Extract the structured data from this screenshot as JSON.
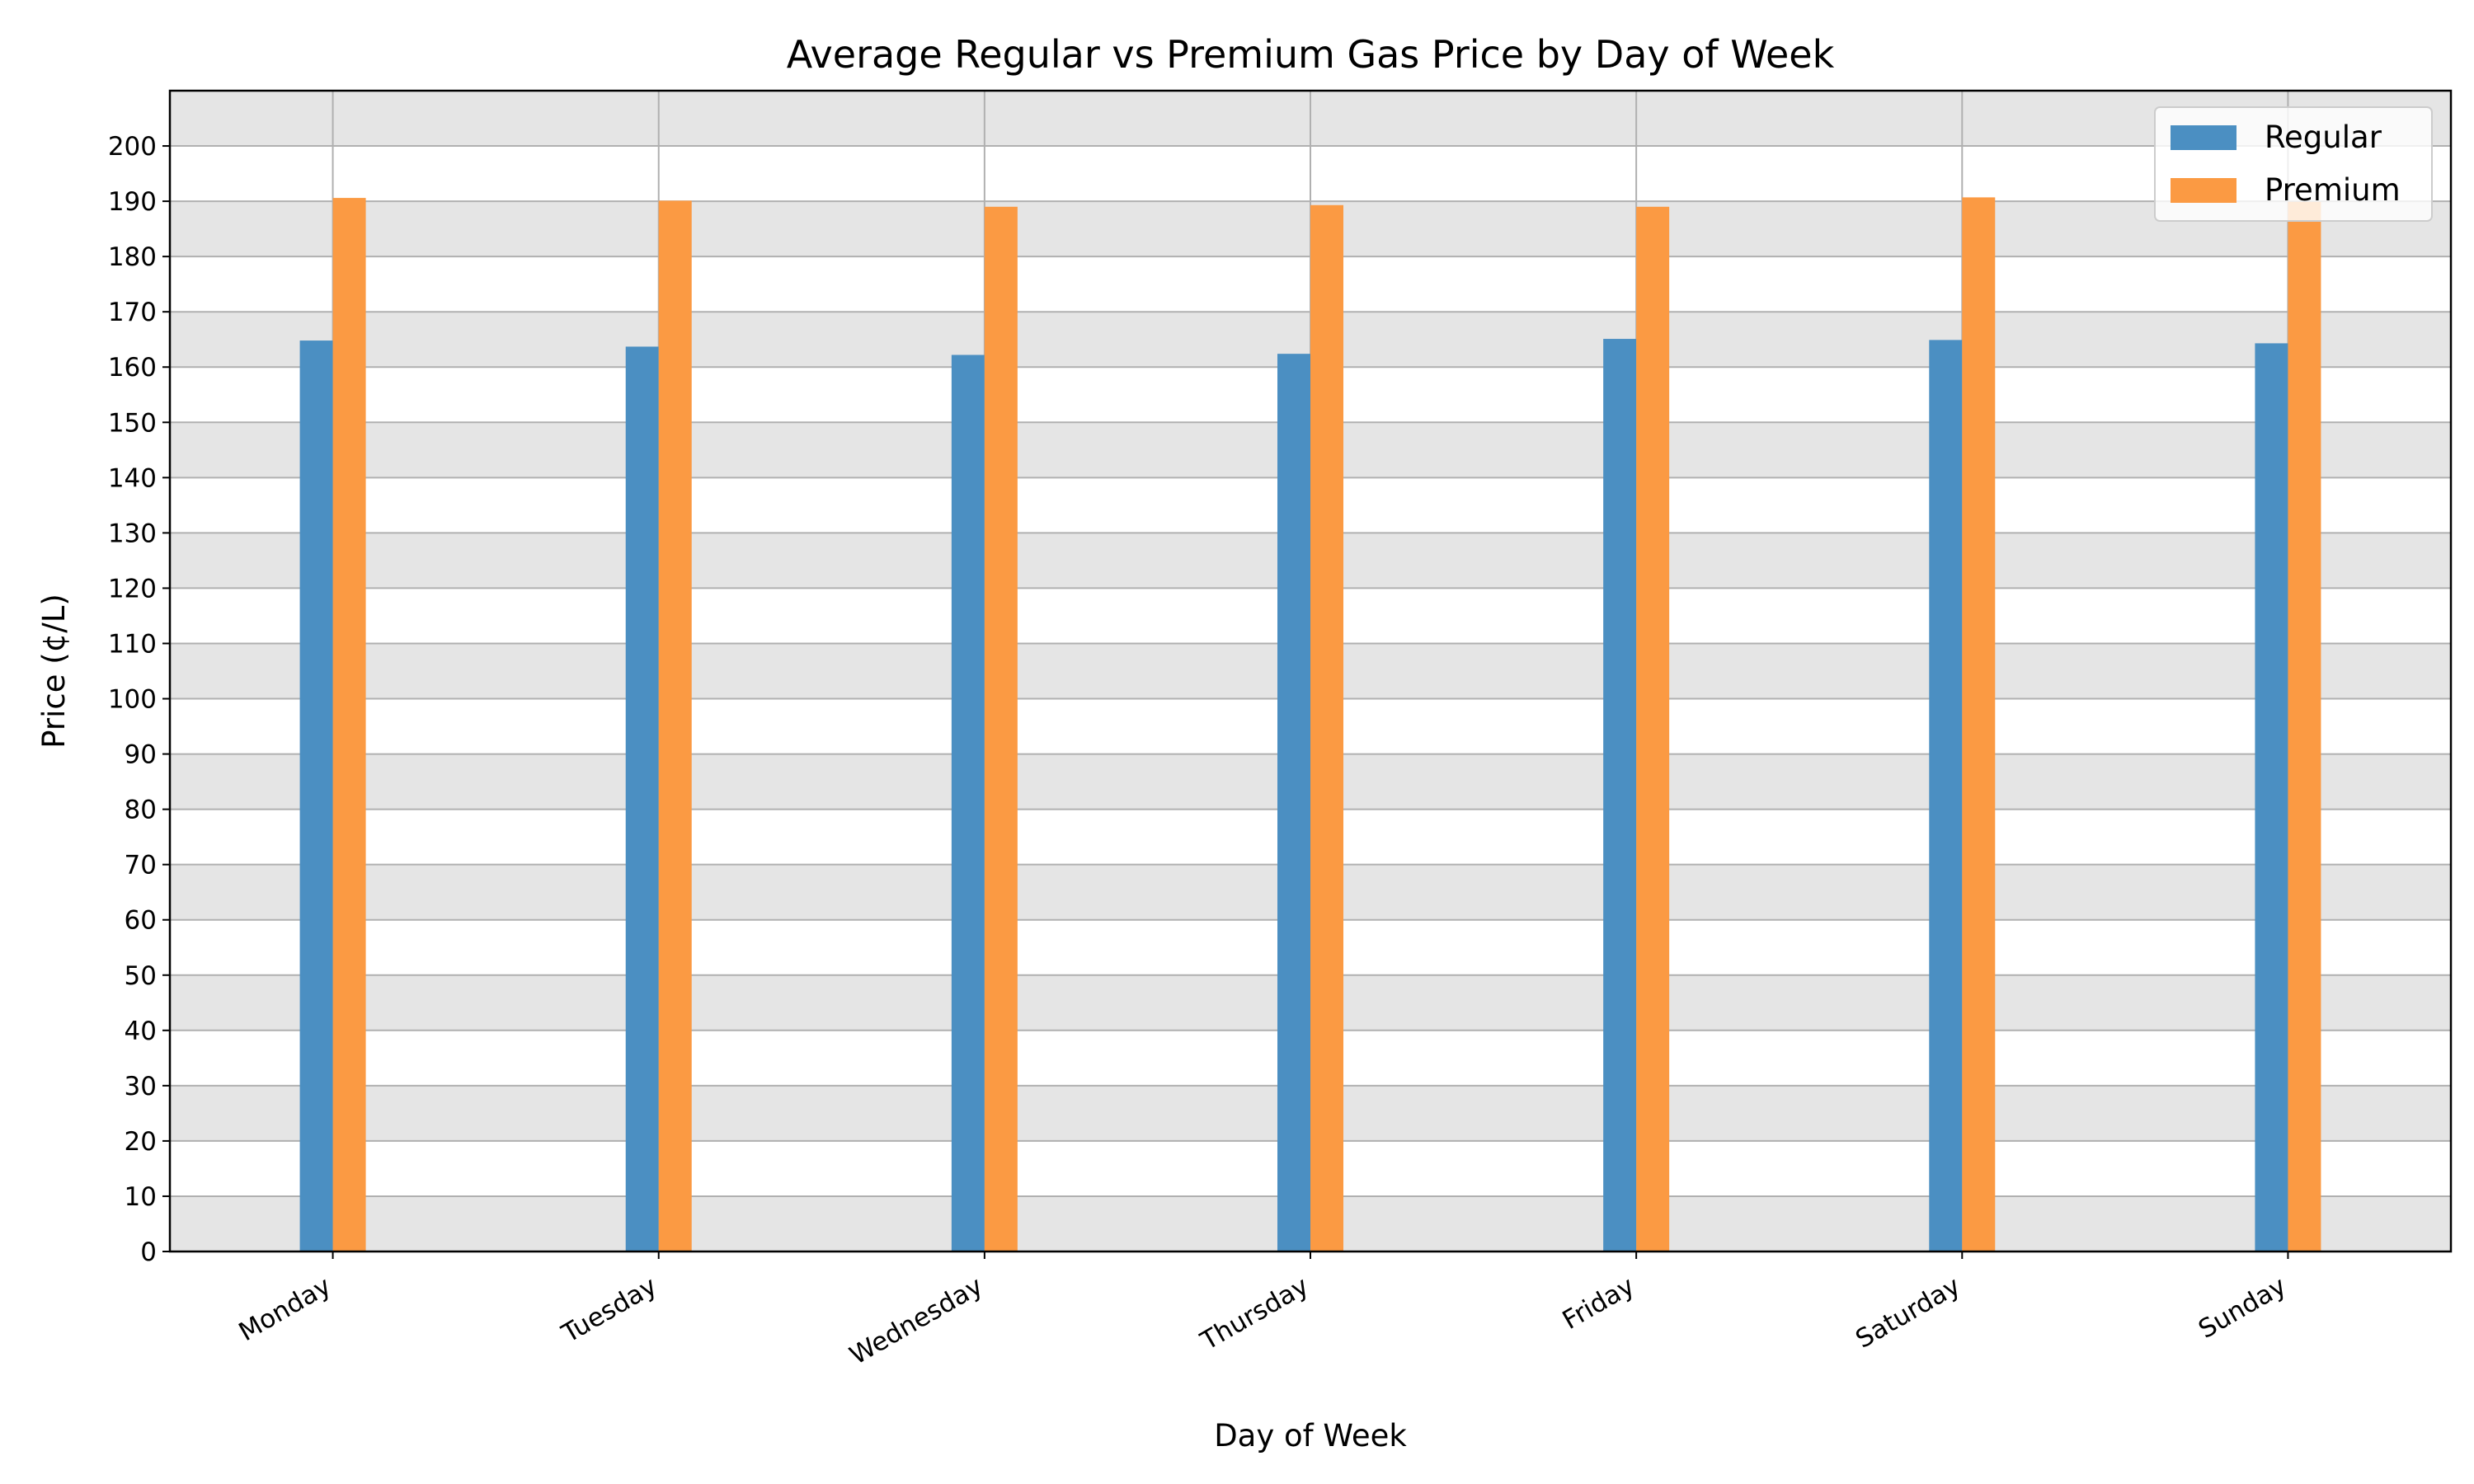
{
  "chart_data": {
    "type": "bar",
    "title": "Average Regular vs Premium Gas Price by Day of Week",
    "xlabel": "Day of Week",
    "ylabel": "Price (¢/L)",
    "categories": [
      "Monday",
      "Tuesday",
      "Wednesday",
      "Thursday",
      "Friday",
      "Saturday",
      "Sunday"
    ],
    "series": [
      {
        "name": "Regular",
        "color": "#4b8fc2",
        "values": [
          164.8,
          163.7,
          162.2,
          162.4,
          165.1,
          164.9,
          164.3
        ]
      },
      {
        "name": "Premium",
        "color": "#fb9a43",
        "values": [
          190.6,
          190.1,
          189.0,
          189.3,
          189.0,
          190.7,
          189.9
        ]
      }
    ],
    "ylim": [
      0,
      210
    ],
    "ytick_step": 10,
    "yticks": [
      "0",
      "10",
      "20",
      "30",
      "40",
      "50",
      "60",
      "70",
      "80",
      "90",
      "100",
      "110",
      "120",
      "130",
      "140",
      "150",
      "160",
      "170",
      "180",
      "190",
      "200"
    ],
    "grid": true,
    "legend": "top-right",
    "band_color": "#e5e5e5",
    "grid_color": "#b0b0b0"
  }
}
